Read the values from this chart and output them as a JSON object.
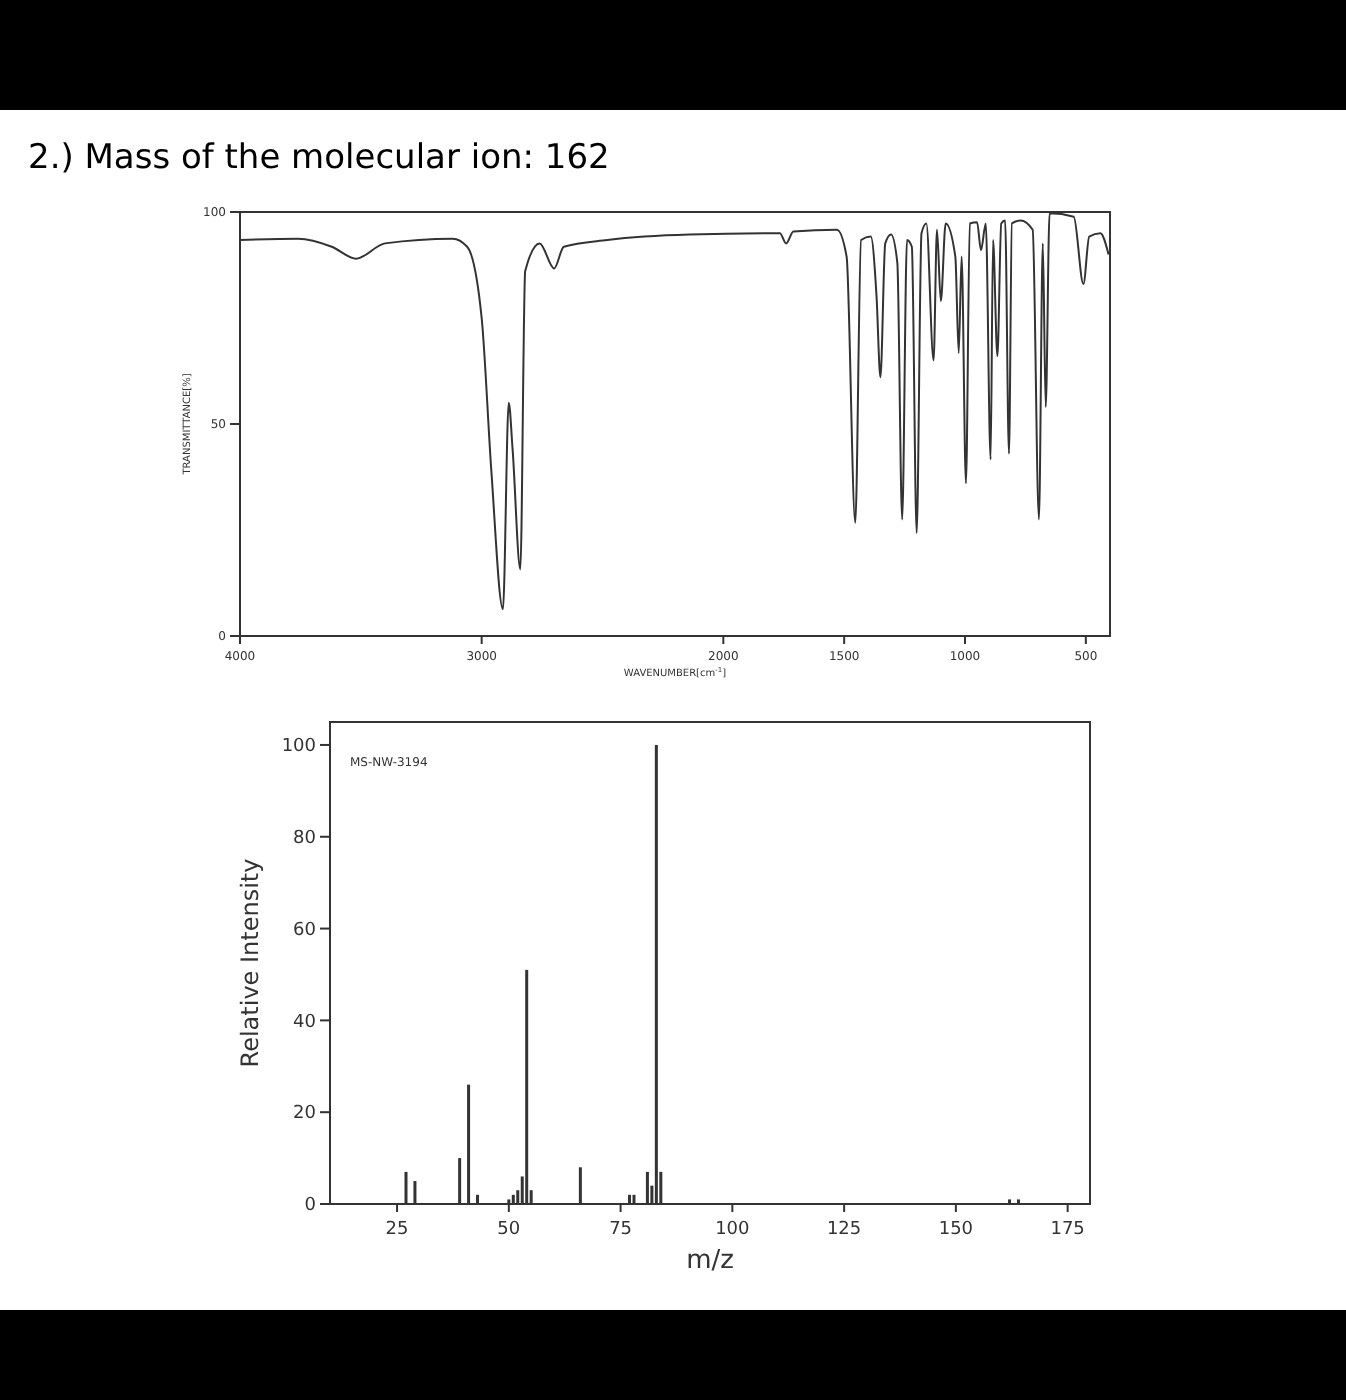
{
  "chart_data": [
    {
      "type": "line",
      "title": "2.) Mass of the molecular ion: 162",
      "xlabel": "WAVENUMBER[cm$^{-1}$]",
      "ylabel": "TRANSMITTANCE[%]",
      "x": [
        4000,
        3760,
        3620,
        3520,
        3400,
        3120,
        3060,
        3000,
        2960,
        2912,
        2888,
        2872,
        2840,
        2820,
        2760,
        2700,
        2660,
        2480,
        2140,
        1766,
        1740,
        1710,
        1530,
        1490,
        1454,
        1430,
        1390,
        1366,
        1350,
        1330,
        1306,
        1280,
        1260,
        1240,
        1220,
        1200,
        1180,
        1160,
        1130,
        1116,
        1100,
        1080,
        1040,
        1026,
        1014,
        996,
        980,
        950,
        934,
        914,
        894,
        884,
        866,
        850,
        834,
        818,
        806,
        770,
        720,
        694,
        678,
        666,
        650,
        550,
        510,
        486,
        440,
        406
      ],
      "series": [
        {
          "color": "#333333",
          "values": [
            93.4,
            93.7,
            91.8,
            89,
            92.6,
            93.7,
            91.8,
            75,
            39,
            6.3,
            55,
            44,
            15.7,
            86,
            92.6,
            86.7,
            91.8,
            93.4,
            94.7,
            95,
            92.6,
            95.4,
            95.8,
            89.5,
            26.7,
            93.4,
            94.2,
            80,
            61,
            92.6,
            94.7,
            88,
            27.5,
            93.4,
            91.8,
            24.3,
            95,
            97.3,
            65,
            95.8,
            79,
            97.3,
            89.5,
            66.7,
            89.5,
            36,
            97.3,
            97.6,
            91,
            97.3,
            41.6,
            93.4,
            66,
            97.3,
            98,
            43,
            97.3,
            98,
            95.8,
            27.5,
            92.6,
            54,
            99.7,
            98.9,
            83,
            94.2,
            95,
            90
          ]
        }
      ],
      "xlim": [
        4000,
        400
      ],
      "xticks": [
        4000,
        3000,
        2000,
        1500,
        1000,
        500
      ],
      "ylim": [
        0,
        100
      ],
      "yticks": [
        0,
        50,
        100
      ],
      "grid": false,
      "line_style": "solid",
      "marker": "none"
    },
    {
      "type": "bar",
      "xlabel": "m/z",
      "ylabel": "Relative Intensity",
      "annotations": [
        "MS-NW-3194"
      ],
      "x": [
        27,
        29,
        39,
        41,
        43,
        50,
        51,
        52,
        53,
        54,
        55,
        66,
        77,
        78,
        81,
        82,
        83,
        84,
        162,
        164
      ],
      "series": [
        {
          "color": "#333333",
          "values": [
            7,
            5,
            10,
            26,
            2,
            1,
            2,
            3,
            6,
            51,
            3,
            8,
            2,
            2,
            7,
            4,
            100,
            7,
            1,
            1
          ]
        }
      ],
      "xlim": [
        10,
        180
      ],
      "xticks": [
        25,
        50,
        75,
        100,
        125,
        150,
        175
      ],
      "ylim": [
        0,
        105
      ],
      "yticks": [
        0,
        20,
        40,
        60,
        80,
        100
      ],
      "grid": false
    }
  ]
}
